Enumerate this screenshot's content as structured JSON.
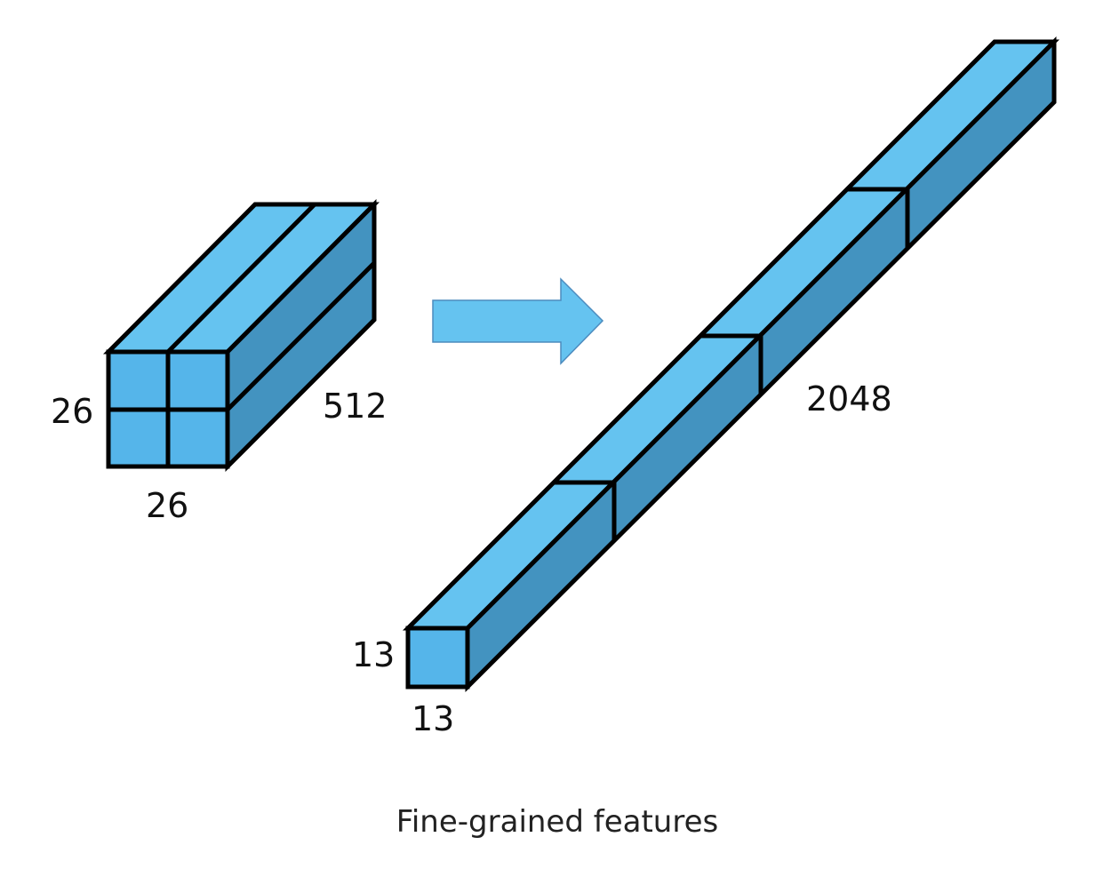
{
  "input_tensor": {
    "height_label": "26",
    "width_label": "26",
    "depth_label": "512"
  },
  "output_tensor": {
    "height_label": "13",
    "width_label": "13",
    "depth_label": "2048"
  },
  "caption": "Fine-grained features",
  "colors": {
    "top_face": "#65C3F0",
    "front_face": "#55B5EA",
    "side_face": "#4393C0",
    "arrow_fill": "#65C3F0",
    "arrow_stroke": "#4C8BBE",
    "edge": "#000000"
  }
}
